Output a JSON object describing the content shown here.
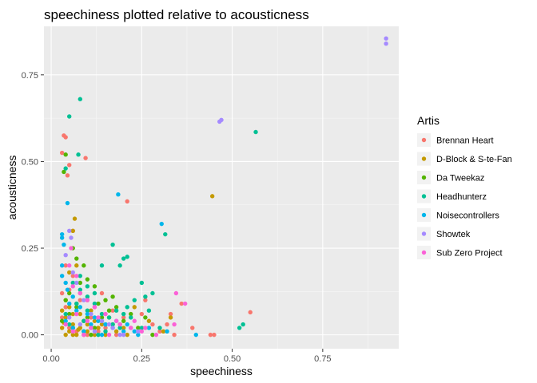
{
  "chart_data": {
    "type": "scatter",
    "title": "speechiness plotted relative to acousticness",
    "xlabel": "speechiness",
    "ylabel": "acousticness",
    "xlim": [
      -0.02,
      0.96
    ],
    "ylim": [
      -0.04,
      0.89
    ],
    "xticks": [
      0.0,
      0.25,
      0.5,
      0.75
    ],
    "xtick_labels": [
      "0.00",
      "0.25",
      "0.50",
      "0.75"
    ],
    "yticks": [
      0.0,
      0.25,
      0.5,
      0.75
    ],
    "ytick_labels": [
      "0.00",
      "0.25",
      "0.50",
      "0.75"
    ],
    "grid": true,
    "legend_position": "right",
    "legend_title": "Artis",
    "series": [
      {
        "name": "Brennan Heart",
        "color": "#F8766D",
        "points": [
          [
            0.03,
            0.525
          ],
          [
            0.035,
            0.575
          ],
          [
            0.04,
            0.57
          ],
          [
            0.05,
            0.49
          ],
          [
            0.045,
            0.46
          ],
          [
            0.095,
            0.51
          ],
          [
            0.21,
            0.385
          ],
          [
            0.55,
            0.065
          ],
          [
            0.44,
            0.0
          ],
          [
            0.45,
            0.0
          ],
          [
            0.04,
            0.2
          ],
          [
            0.06,
            0.17
          ],
          [
            0.03,
            0.12
          ],
          [
            0.08,
            0.1
          ],
          [
            0.12,
            0.08
          ],
          [
            0.2,
            0.05
          ],
          [
            0.25,
            0.06
          ],
          [
            0.28,
            0.03
          ],
          [
            0.33,
            0.06
          ],
          [
            0.36,
            0.09
          ],
          [
            0.03,
            0.05
          ],
          [
            0.05,
            0.02
          ],
          [
            0.07,
            0.01
          ],
          [
            0.1,
            0.0
          ],
          [
            0.15,
            0.02
          ],
          [
            0.18,
            0.0
          ],
          [
            0.22,
            0.02
          ],
          [
            0.3,
            0.01
          ],
          [
            0.34,
            0.0
          ],
          [
            0.04,
            0.08
          ],
          [
            0.06,
            0.3
          ],
          [
            0.09,
            0.04
          ],
          [
            0.14,
            0.12
          ],
          [
            0.17,
            0.07
          ],
          [
            0.26,
            0.1
          ],
          [
            0.39,
            0.02
          ],
          [
            0.32,
            0.03
          ],
          [
            0.05,
            0.13
          ],
          [
            0.11,
            0.05
          ],
          [
            0.13,
            0.01
          ]
        ]
      },
      {
        "name": "D-Block & S-te-Fan",
        "color": "#C49A00",
        "points": [
          [
            0.445,
            0.4
          ],
          [
            0.065,
            0.335
          ],
          [
            0.06,
            0.3
          ],
          [
            0.07,
            0.2
          ],
          [
            0.05,
            0.18
          ],
          [
            0.08,
            0.12
          ],
          [
            0.1,
            0.1
          ],
          [
            0.03,
            0.07
          ],
          [
            0.04,
            0.05
          ],
          [
            0.06,
            0.03
          ],
          [
            0.08,
            0.02
          ],
          [
            0.1,
            0.01
          ],
          [
            0.12,
            0.0
          ],
          [
            0.14,
            0.03
          ],
          [
            0.16,
            0.05
          ],
          [
            0.2,
            0.02
          ],
          [
            0.23,
            0.08
          ],
          [
            0.27,
            0.04
          ],
          [
            0.31,
            0.01
          ],
          [
            0.33,
            0.05
          ],
          [
            0.04,
            0.0
          ],
          [
            0.05,
            0.01
          ],
          [
            0.07,
            0.0
          ],
          [
            0.09,
            0.04
          ],
          [
            0.11,
            0.07
          ],
          [
            0.13,
            0.02
          ],
          [
            0.15,
            0.0
          ],
          [
            0.18,
            0.01
          ],
          [
            0.03,
            0.02
          ],
          [
            0.06,
            0.06
          ],
          [
            0.07,
            0.09
          ],
          [
            0.09,
            0.0
          ],
          [
            0.12,
            0.04
          ],
          [
            0.17,
            0.03
          ],
          [
            0.21,
            0.0
          ],
          [
            0.04,
            0.1
          ],
          [
            0.05,
            0.08
          ],
          [
            0.08,
            0.06
          ],
          [
            0.1,
            0.03
          ],
          [
            0.06,
            0.0
          ],
          [
            0.075,
            0.015
          ],
          [
            0.035,
            0.035
          ]
        ]
      },
      {
        "name": "Da Tweekaz",
        "color": "#53B400",
        "points": [
          [
            0.04,
            0.52
          ],
          [
            0.035,
            0.47
          ],
          [
            0.06,
            0.25
          ],
          [
            0.07,
            0.22
          ],
          [
            0.09,
            0.2
          ],
          [
            0.1,
            0.16
          ],
          [
            0.12,
            0.14
          ],
          [
            0.05,
            0.12
          ],
          [
            0.15,
            0.1
          ],
          [
            0.18,
            0.08
          ],
          [
            0.22,
            0.06
          ],
          [
            0.03,
            0.04
          ],
          [
            0.06,
            0.02
          ],
          [
            0.09,
            0.01
          ],
          [
            0.11,
            0.0
          ],
          [
            0.14,
            0.05
          ],
          [
            0.16,
            0.07
          ],
          [
            0.19,
            0.03
          ],
          [
            0.24,
            0.02
          ],
          [
            0.28,
            0.0
          ],
          [
            0.04,
            0.1
          ],
          [
            0.08,
            0.15
          ],
          [
            0.13,
            0.09
          ],
          [
            0.17,
            0.11
          ],
          [
            0.2,
            0.04
          ],
          [
            0.05,
            0.06
          ],
          [
            0.07,
            0.08
          ],
          [
            0.1,
            0.05
          ],
          [
            0.12,
            0.02
          ],
          [
            0.26,
            0.05
          ]
        ]
      },
      {
        "name": "Headhunterz",
        "color": "#00C094",
        "points": [
          [
            0.08,
            0.68
          ],
          [
            0.05,
            0.63
          ],
          [
            0.075,
            0.52
          ],
          [
            0.565,
            0.585
          ],
          [
            0.04,
            0.48
          ],
          [
            0.315,
            0.29
          ],
          [
            0.17,
            0.26
          ],
          [
            0.2,
            0.22
          ],
          [
            0.21,
            0.225
          ],
          [
            0.19,
            0.2
          ],
          [
            0.14,
            0.2
          ],
          [
            0.28,
            0.12
          ],
          [
            0.25,
            0.15
          ],
          [
            0.26,
            0.11
          ],
          [
            0.06,
            0.15
          ],
          [
            0.08,
            0.13
          ],
          [
            0.1,
            0.11
          ],
          [
            0.12,
            0.09
          ],
          [
            0.18,
            0.07
          ],
          [
            0.2,
            0.06
          ],
          [
            0.22,
            0.05
          ],
          [
            0.16,
            0.05
          ],
          [
            0.14,
            0.04
          ],
          [
            0.06,
            0.02
          ],
          [
            0.09,
            0.04
          ],
          [
            0.11,
            0.02
          ],
          [
            0.13,
            0.0
          ],
          [
            0.15,
            0.01
          ],
          [
            0.17,
            0.03
          ],
          [
            0.19,
            0.02
          ],
          [
            0.52,
            0.02
          ],
          [
            0.53,
            0.03
          ],
          [
            0.3,
            0.02
          ],
          [
            0.23,
            0.1
          ],
          [
            0.27,
            0.07
          ],
          [
            0.04,
            0.06
          ],
          [
            0.07,
            0.09
          ],
          [
            0.1,
            0.07
          ],
          [
            0.12,
            0.12
          ],
          [
            0.08,
            0.17
          ],
          [
            0.05,
            0.03
          ],
          [
            0.25,
            0.02
          ],
          [
            0.21,
            0.08
          ],
          [
            0.1,
            0.14
          ],
          [
            0.14,
            0.06
          ],
          [
            0.15,
            0.03
          ]
        ]
      },
      {
        "name": "Noisecontrollers",
        "color": "#00B6EB",
        "points": [
          [
            0.185,
            0.405
          ],
          [
            0.045,
            0.38
          ],
          [
            0.305,
            0.32
          ],
          [
            0.03,
            0.29
          ],
          [
            0.03,
            0.28
          ],
          [
            0.035,
            0.26
          ],
          [
            0.03,
            0.2
          ],
          [
            0.03,
            0.17
          ],
          [
            0.04,
            0.15
          ],
          [
            0.045,
            0.13
          ],
          [
            0.06,
            0.11
          ],
          [
            0.08,
            0.08
          ],
          [
            0.1,
            0.06
          ],
          [
            0.13,
            0.04
          ],
          [
            0.15,
            0.03
          ],
          [
            0.17,
            0.02
          ],
          [
            0.2,
            0.01
          ],
          [
            0.24,
            0.0
          ],
          [
            0.27,
            0.02
          ],
          [
            0.32,
            0.01
          ],
          [
            0.4,
            0.0
          ],
          [
            0.04,
            0.04
          ],
          [
            0.06,
            0.02
          ],
          [
            0.09,
            0.01
          ],
          [
            0.11,
            0.03
          ],
          [
            0.14,
            0.0
          ],
          [
            0.18,
            0.04
          ],
          [
            0.21,
            0.03
          ],
          [
            0.23,
            0.01
          ],
          [
            0.05,
            0.09
          ],
          [
            0.07,
            0.07
          ],
          [
            0.12,
            0.05
          ]
        ]
      },
      {
        "name": "Showtek",
        "color": "#A58AFF",
        "points": [
          [
            0.925,
            0.855
          ],
          [
            0.925,
            0.84
          ],
          [
            0.465,
            0.615
          ],
          [
            0.47,
            0.62
          ],
          [
            0.05,
            0.3
          ],
          [
            0.055,
            0.28
          ],
          [
            0.04,
            0.23
          ],
          [
            0.06,
            0.18
          ],
          [
            0.07,
            0.15
          ],
          [
            0.09,
            0.1
          ],
          [
            0.11,
            0.06
          ],
          [
            0.14,
            0.04
          ],
          [
            0.17,
            0.02
          ],
          [
            0.2,
            0.0
          ],
          [
            0.24,
            0.01
          ],
          [
            0.05,
            0.05
          ],
          [
            0.08,
            0.03
          ],
          [
            0.12,
            0.01
          ],
          [
            0.16,
            0.03
          ],
          [
            0.19,
            0.0
          ]
        ]
      },
      {
        "name": "Sub Zero Project",
        "color": "#FB61D7",
        "points": [
          [
            0.345,
            0.12
          ],
          [
            0.37,
            0.09
          ],
          [
            0.055,
            0.25
          ],
          [
            0.05,
            0.2
          ],
          [
            0.07,
            0.17
          ],
          [
            0.06,
            0.14
          ],
          [
            0.08,
            0.12
          ],
          [
            0.1,
            0.1
          ],
          [
            0.12,
            0.08
          ],
          [
            0.15,
            0.06
          ],
          [
            0.18,
            0.04
          ],
          [
            0.22,
            0.02
          ],
          [
            0.25,
            0.01
          ],
          [
            0.29,
            0.0
          ],
          [
            0.34,
            0.03
          ],
          [
            0.04,
            0.03
          ],
          [
            0.06,
            0.01
          ],
          [
            0.09,
            0.0
          ],
          [
            0.11,
            0.02
          ],
          [
            0.13,
            0.05
          ],
          [
            0.16,
            0.0
          ],
          [
            0.19,
            0.03
          ],
          [
            0.23,
            0.04
          ],
          [
            0.26,
            0.02
          ],
          [
            0.07,
            0.06
          ],
          [
            0.1,
            0.04
          ]
        ]
      }
    ]
  }
}
